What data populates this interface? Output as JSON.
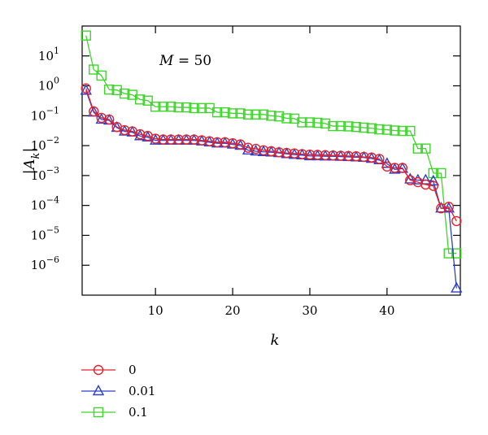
{
  "chart_data": {
    "type": "line",
    "y_scale": "log",
    "title": "",
    "xlabel": "k",
    "ylabel": "|A_k|",
    "annotation": "M = 50",
    "xlim": [
      0.5,
      49.5
    ],
    "ylim": [
      1e-07,
      100
    ],
    "x_ticks": [
      10,
      20,
      30,
      40
    ],
    "y_ticks": [
      {
        "value": 10,
        "mantissa": "10",
        "exp": "1"
      },
      {
        "value": 1,
        "mantissa": "10",
        "exp": "0"
      },
      {
        "value": 0.1,
        "mantissa": "10",
        "exp": "−1"
      },
      {
        "value": 0.01,
        "mantissa": "10",
        "exp": "−2"
      },
      {
        "value": 0.001,
        "mantissa": "10",
        "exp": "−3"
      },
      {
        "value": 0.0001,
        "mantissa": "10",
        "exp": "−4"
      },
      {
        "value": 1e-05,
        "mantissa": "10",
        "exp": "−5"
      },
      {
        "value": 1e-06,
        "mantissa": "10",
        "exp": "−6"
      }
    ],
    "legend_position": "below",
    "series": [
      {
        "name": "0",
        "color": "#e8202a",
        "marker": "circle",
        "x": [
          1,
          2,
          3,
          4,
          5,
          6,
          7,
          8,
          9,
          10,
          11,
          12,
          13,
          14,
          15,
          16,
          17,
          18,
          19,
          20,
          21,
          22,
          23,
          24,
          25,
          26,
          27,
          28,
          29,
          30,
          31,
          32,
          33,
          34,
          35,
          36,
          37,
          38,
          39,
          40,
          41,
          42,
          43,
          44,
          45,
          46,
          47,
          48,
          49
        ],
        "values": [
          0.82,
          0.14,
          0.085,
          0.075,
          0.042,
          0.033,
          0.03,
          0.024,
          0.021,
          0.017,
          0.016,
          0.016,
          0.016,
          0.016,
          0.016,
          0.015,
          0.014,
          0.013,
          0.013,
          0.012,
          0.011,
          0.0085,
          0.0078,
          0.007,
          0.0065,
          0.006,
          0.0057,
          0.0055,
          0.0052,
          0.005,
          0.0049,
          0.0048,
          0.0047,
          0.0046,
          0.0045,
          0.0044,
          0.0042,
          0.004,
          0.0036,
          0.002,
          0.0018,
          0.0018,
          0.0007,
          0.0006,
          0.0005,
          0.00045,
          8e-05,
          9e-05,
          3e-05
        ]
      },
      {
        "name": "0.01",
        "color": "#2c3fc8",
        "marker": "triangle",
        "x": [
          1,
          2,
          3,
          4,
          5,
          6,
          7,
          8,
          9,
          10,
          11,
          12,
          13,
          14,
          15,
          16,
          17,
          18,
          19,
          20,
          21,
          22,
          23,
          24,
          25,
          26,
          27,
          28,
          29,
          30,
          31,
          32,
          33,
          34,
          35,
          36,
          37,
          38,
          39,
          40,
          41,
          42,
          43,
          44,
          45,
          46,
          47,
          48,
          49
        ],
        "values": [
          0.7,
          0.13,
          0.075,
          0.07,
          0.04,
          0.03,
          0.028,
          0.021,
          0.019,
          0.015,
          0.015,
          0.015,
          0.015,
          0.015,
          0.015,
          0.014,
          0.013,
          0.012,
          0.012,
          0.011,
          0.01,
          0.007,
          0.0065,
          0.0062,
          0.006,
          0.0057,
          0.0053,
          0.005,
          0.0048,
          0.0045,
          0.0045,
          0.0044,
          0.0044,
          0.0043,
          0.0042,
          0.0041,
          0.004,
          0.0037,
          0.0033,
          0.0025,
          0.0016,
          0.0017,
          0.00075,
          0.0007,
          0.0007,
          0.00065,
          8e-05,
          8e-05,
          1.7e-07
        ]
      },
      {
        "name": "0.1",
        "color": "#3fd62b",
        "marker": "square",
        "x": [
          1,
          2,
          3,
          4,
          5,
          6,
          7,
          8,
          9,
          10,
          11,
          12,
          13,
          14,
          15,
          16,
          17,
          18,
          19,
          20,
          21,
          22,
          23,
          24,
          25,
          26,
          27,
          28,
          29,
          30,
          31,
          32,
          33,
          34,
          35,
          36,
          37,
          38,
          39,
          40,
          41,
          42,
          43,
          44,
          45,
          46,
          47,
          48,
          49
        ],
        "values": [
          48,
          3.5,
          2.2,
          0.75,
          0.72,
          0.55,
          0.5,
          0.35,
          0.32,
          0.2,
          0.2,
          0.2,
          0.19,
          0.19,
          0.18,
          0.18,
          0.18,
          0.13,
          0.13,
          0.12,
          0.12,
          0.11,
          0.11,
          0.11,
          0.1,
          0.095,
          0.082,
          0.08,
          0.06,
          0.06,
          0.058,
          0.055,
          0.045,
          0.045,
          0.044,
          0.042,
          0.04,
          0.038,
          0.035,
          0.034,
          0.032,
          0.031,
          0.031,
          0.008,
          0.008,
          0.0012,
          0.0012,
          2.5e-06,
          2.5e-06
        ]
      }
    ]
  }
}
